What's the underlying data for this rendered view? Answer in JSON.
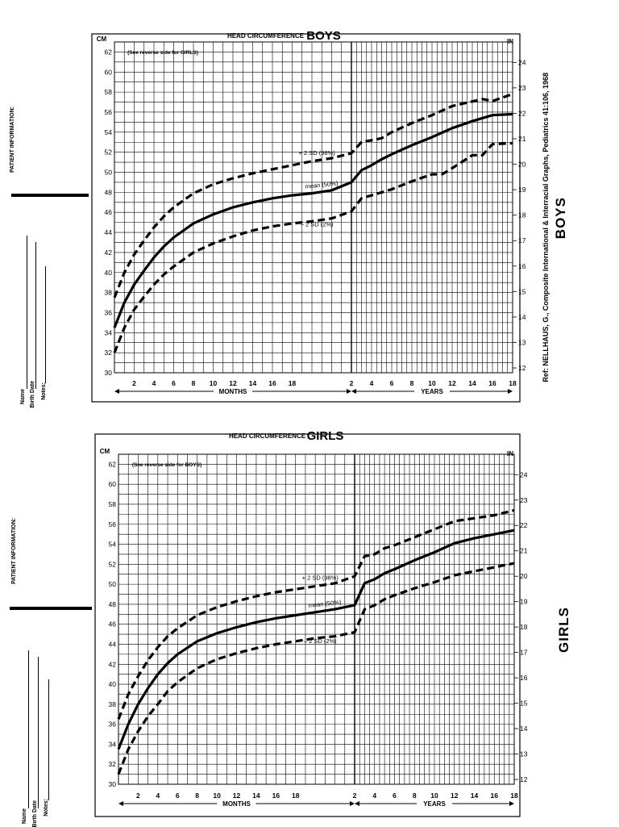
{
  "side_panel": {
    "patient_information": "PATIENT INFORMATION:",
    "name_label": "Name",
    "birth_date_label": "Birth Date",
    "notes_label": "Notes:"
  },
  "reference": "Ref: NELLHAUS, G., Composite International & Interracial Graphs, Pediatrics 41:106, 1968",
  "side_labels": {
    "boys": "BOYS",
    "girls": "GIRLS"
  },
  "colors": {
    "ink": "#000000",
    "paper": "#ffffff"
  },
  "chart_data": [
    {
      "type": "line",
      "title_prefix": "HEAD CIRCUMFERENCE",
      "title_sex": "BOYS",
      "note": "(See reverse side for GIRLS)",
      "ylabel_left": "CM",
      "ylabel_right": "IN",
      "months_label": "MONTHS",
      "years_label": "YEARS",
      "ylim_cm": [
        30,
        63
      ],
      "yticks_cm": [
        "30",
        "32",
        "34",
        "36",
        "38",
        "40",
        "42",
        "44",
        "46",
        "48",
        "50",
        "52",
        "54",
        "56",
        "58",
        "60",
        "62"
      ],
      "yticks_in": [
        "12",
        "13",
        "14",
        "15",
        "16",
        "17",
        "18",
        "19",
        "20",
        "21",
        "22",
        "23",
        "24"
      ],
      "month_ticks": [
        "2",
        "4",
        "6",
        "8",
        "10",
        "12",
        "14",
        "16",
        "18"
      ],
      "year_ticks": [
        "2",
        "4",
        "6",
        "8",
        "10",
        "12",
        "14",
        "16",
        "18"
      ],
      "series": [
        {
          "name": "+ 2 SD (98%)",
          "style": "dashed",
          "points": [
            [
              0,
              37.5
            ],
            [
              1,
              40
            ],
            [
              2,
              41.8
            ],
            [
              3,
              43.2
            ],
            [
              4,
              44.5
            ],
            [
              5,
              45.6
            ],
            [
              6,
              46.5
            ],
            [
              8,
              47.9
            ],
            [
              10,
              48.8
            ],
            [
              12,
              49.4
            ],
            [
              14,
              49.9
            ],
            [
              16,
              50.3
            ],
            [
              18,
              50.7
            ],
            [
              20,
              51.1
            ],
            [
              22,
              51.4
            ],
            [
              24,
              51.9
            ],
            [
              36,
              53.0
            ],
            [
              48,
              53.2
            ],
            [
              60,
              53.4
            ],
            [
              72,
              54.0
            ],
            [
              96,
              54.9
            ],
            [
              120,
              55.7
            ],
            [
              144,
              56.6
            ],
            [
              180,
              57.3
            ],
            [
              192,
              57.1
            ],
            [
              216,
              57.8
            ]
          ]
        },
        {
          "name": "mean (50%)",
          "style": "solid",
          "points": [
            [
              0,
              34.5
            ],
            [
              1,
              37
            ],
            [
              2,
              38.8
            ],
            [
              3,
              40.2
            ],
            [
              4,
              41.5
            ],
            [
              5,
              42.6
            ],
            [
              6,
              43.5
            ],
            [
              8,
              44.9
            ],
            [
              10,
              45.8
            ],
            [
              12,
              46.5
            ],
            [
              14,
              47.0
            ],
            [
              16,
              47.4
            ],
            [
              18,
              47.7
            ],
            [
              20,
              47.9
            ],
            [
              22,
              48.2
            ],
            [
              24,
              49.0
            ],
            [
              36,
              50.2
            ],
            [
              48,
              50.7
            ],
            [
              60,
              51.3
            ],
            [
              72,
              51.8
            ],
            [
              96,
              52.7
            ],
            [
              120,
              53.5
            ],
            [
              144,
              54.4
            ],
            [
              168,
              55.1
            ],
            [
              192,
              55.7
            ],
            [
              216,
              55.8
            ]
          ]
        },
        {
          "name": "– 2 SD (2%)",
          "style": "dashed",
          "points": [
            [
              0,
              32
            ],
            [
              1,
              34.5
            ],
            [
              2,
              36.3
            ],
            [
              3,
              37.6
            ],
            [
              4,
              38.8
            ],
            [
              5,
              39.8
            ],
            [
              6,
              40.6
            ],
            [
              8,
              42.0
            ],
            [
              10,
              42.9
            ],
            [
              12,
              43.6
            ],
            [
              14,
              44.2
            ],
            [
              16,
              44.6
            ],
            [
              18,
              44.9
            ],
            [
              20,
              45.1
            ],
            [
              22,
              45.4
            ],
            [
              24,
              46.1
            ],
            [
              36,
              47.4
            ],
            [
              48,
              47.7
            ],
            [
              60,
              48.0
            ],
            [
              72,
              48.3
            ],
            [
              96,
              49.1
            ],
            [
              120,
              49.8
            ],
            [
              132,
              49.8
            ],
            [
              144,
              50.4
            ],
            [
              168,
              51.7
            ],
            [
              180,
              51.7
            ],
            [
              192,
              52.8
            ],
            [
              216,
              52.9
            ]
          ]
        }
      ]
    },
    {
      "type": "line",
      "title_prefix": "HEAD CIRCUMFERENCE",
      "title_sex": "GIRLS",
      "note": "(See reverse side for BOYS)",
      "ylabel_left": "CM",
      "ylabel_right": "IN",
      "months_label": "MONTHS",
      "years_label": "YEARS",
      "ylim_cm": [
        30,
        63
      ],
      "yticks_cm": [
        "30",
        "32",
        "34",
        "36",
        "38",
        "40",
        "42",
        "44",
        "46",
        "48",
        "50",
        "52",
        "54",
        "56",
        "58",
        "60",
        "62"
      ],
      "yticks_in": [
        "12",
        "13",
        "14",
        "15",
        "16",
        "17",
        "18",
        "19",
        "20",
        "21",
        "22",
        "23",
        "24"
      ],
      "month_ticks": [
        "2",
        "4",
        "6",
        "8",
        "10",
        "12",
        "14",
        "16",
        "18"
      ],
      "year_ticks": [
        "2",
        "4",
        "6",
        "8",
        "10",
        "12",
        "14",
        "16",
        "18"
      ],
      "series": [
        {
          "name": "+ 2 SD (98%)",
          "style": "dashed",
          "points": [
            [
              0,
              36.5
            ],
            [
              1,
              39
            ],
            [
              2,
              40.8
            ],
            [
              3,
              42.4
            ],
            [
              4,
              43.7
            ],
            [
              5,
              44.8
            ],
            [
              6,
              45.6
            ],
            [
              8,
              46.9
            ],
            [
              10,
              47.7
            ],
            [
              12,
              48.3
            ],
            [
              14,
              48.8
            ],
            [
              16,
              49.2
            ],
            [
              18,
              49.5
            ],
            [
              20,
              49.8
            ],
            [
              22,
              50.1
            ],
            [
              24,
              50.8
            ],
            [
              36,
              52.8
            ],
            [
              48,
              53.0
            ],
            [
              60,
              53.6
            ],
            [
              72,
              53.9
            ],
            [
              96,
              54.7
            ],
            [
              120,
              55.5
            ],
            [
              144,
              56.3
            ],
            [
              168,
              56.6
            ],
            [
              192,
              56.9
            ],
            [
              216,
              57.4
            ]
          ]
        },
        {
          "name": "mean (50%)",
          "style": "solid",
          "points": [
            [
              0,
              33.5
            ],
            [
              1,
              36
            ],
            [
              2,
              38.0
            ],
            [
              3,
              39.6
            ],
            [
              4,
              41.0
            ],
            [
              5,
              42.1
            ],
            [
              6,
              43.0
            ],
            [
              8,
              44.3
            ],
            [
              10,
              45.1
            ],
            [
              12,
              45.7
            ],
            [
              14,
              46.2
            ],
            [
              16,
              46.6
            ],
            [
              18,
              46.9
            ],
            [
              20,
              47.2
            ],
            [
              22,
              47.5
            ],
            [
              24,
              47.9
            ],
            [
              36,
              50.1
            ],
            [
              48,
              50.5
            ],
            [
              60,
              51.1
            ],
            [
              72,
              51.5
            ],
            [
              96,
              52.4
            ],
            [
              120,
              53.2
            ],
            [
              144,
              54.1
            ],
            [
              168,
              54.6
            ],
            [
              192,
              55.0
            ],
            [
              216,
              55.4
            ]
          ]
        },
        {
          "name": "– 2 SD (2%)",
          "style": "dashed",
          "points": [
            [
              0,
              31
            ],
            [
              1,
              33.5
            ],
            [
              2,
              35.3
            ],
            [
              3,
              36.8
            ],
            [
              4,
              38.0
            ],
            [
              5,
              39.3
            ],
            [
              6,
              40.2
            ],
            [
              8,
              41.6
            ],
            [
              10,
              42.5
            ],
            [
              12,
              43.1
            ],
            [
              14,
              43.6
            ],
            [
              16,
              44.0
            ],
            [
              18,
              44.3
            ],
            [
              20,
              44.6
            ],
            [
              22,
              44.8
            ],
            [
              24,
              45.2
            ],
            [
              36,
              47.5
            ],
            [
              48,
              47.9
            ],
            [
              60,
              48.5
            ],
            [
              72,
              48.9
            ],
            [
              96,
              49.6
            ],
            [
              120,
              50.2
            ],
            [
              144,
              50.9
            ],
            [
              168,
              51.3
            ],
            [
              192,
              51.7
            ],
            [
              216,
              52.1
            ]
          ]
        }
      ]
    }
  ]
}
